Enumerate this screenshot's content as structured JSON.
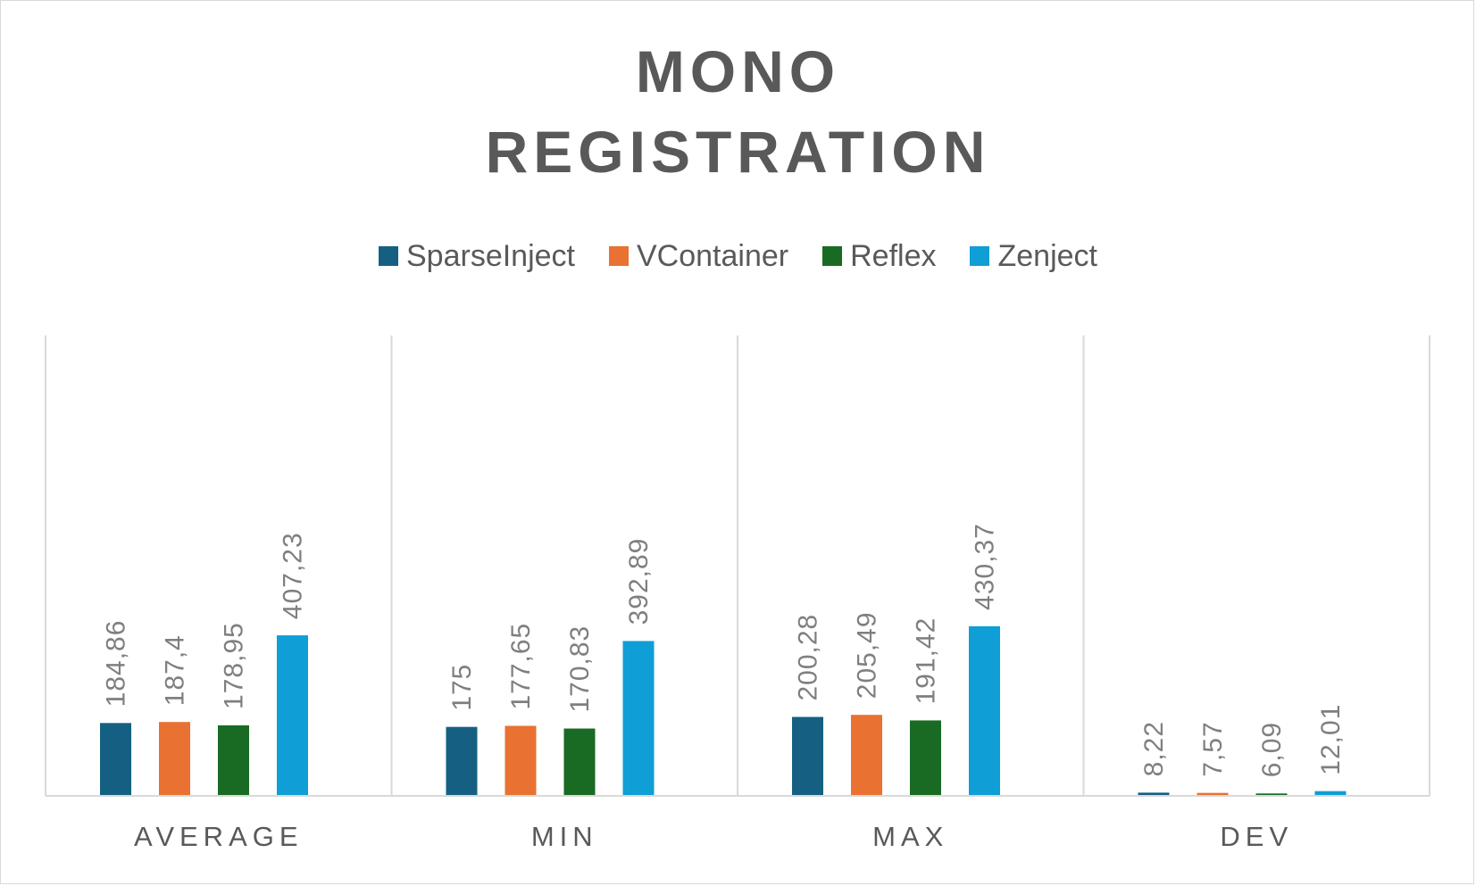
{
  "chart_data": {
    "type": "bar",
    "title_lines": [
      "MONO",
      "REGISTRATION"
    ],
    "categories": [
      "AVERAGE",
      "MIN",
      "MAX",
      "DEV"
    ],
    "series": [
      {
        "name": "SparseInject",
        "color": "#156082",
        "values": [
          184.86,
          175,
          200.28,
          8.22
        ],
        "labels": [
          "184,86",
          "175",
          "200,28",
          "8,22"
        ]
      },
      {
        "name": "VContainer",
        "color": "#E97132",
        "values": [
          187.4,
          177.65,
          205.49,
          7.57
        ],
        "labels": [
          "187,4",
          "177,65",
          "205,49",
          "7,57"
        ]
      },
      {
        "name": "Reflex",
        "color": "#196B24",
        "values": [
          178.95,
          170.83,
          191.42,
          6.09
        ],
        "labels": [
          "178,95",
          "170,83",
          "191,42",
          "6,09"
        ]
      },
      {
        "name": "Zenject",
        "color": "#0F9ED5",
        "values": [
          407.23,
          392.89,
          430.37,
          12.01
        ],
        "labels": [
          "407,23",
          "392,89",
          "430,37",
          "12,01"
        ]
      }
    ],
    "legend_position": "top",
    "grid": false,
    "ylim": [
      0,
      500
    ]
  }
}
